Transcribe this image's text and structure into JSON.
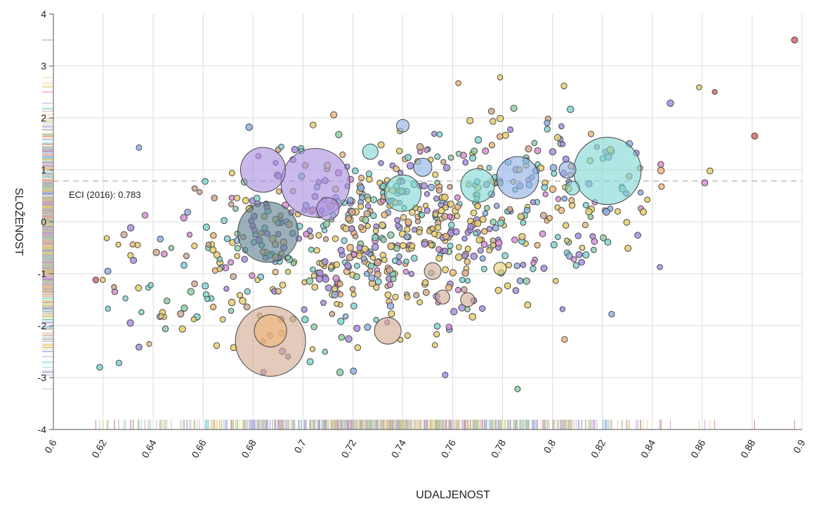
{
  "chart_data": {
    "type": "scatter",
    "title": "",
    "xlabel": "UDALJENOST",
    "ylabel": "SLOŽENOST",
    "xlim": [
      0.6,
      0.9
    ],
    "ylim": [
      -4,
      4
    ],
    "grid": true,
    "x_ticks": [
      "0.6",
      "0.62",
      "0.64",
      "0.66",
      "0.68",
      "0.7",
      "0.72",
      "0.74",
      "0.76",
      "0.78",
      "0.8",
      "0.82",
      "0.84",
      "0.86",
      "0.88",
      "0.9"
    ],
    "y_ticks": [
      "-4",
      "-3",
      "-2",
      "-1",
      "0",
      "1",
      "2",
      "3",
      "4"
    ],
    "reference_line": {
      "y": 0.783,
      "label": "ECI (2016): 0.783",
      "style": "dashed"
    },
    "rug_plots": {
      "x_axis": true,
      "y_axis": true
    },
    "colors": {
      "purple": "#a98fe0",
      "teal": "#7fd6d2",
      "blue": "#8fb2e6",
      "yellow": "#e9cf6f",
      "pink": "#d98fd6",
      "tan": "#d4a991",
      "orange": "#f0b879",
      "green": "#8fcfa6",
      "slate": "#5d7f8e",
      "red": "#d76a6a"
    },
    "large_bubbles": [
      {
        "x": 0.705,
        "y": 0.75,
        "r": 49,
        "color": "purple"
      },
      {
        "x": 0.822,
        "y": 0.98,
        "r": 48,
        "color": "teal"
      },
      {
        "x": 0.687,
        "y": -2.3,
        "r": 50,
        "color": "tan"
      },
      {
        "x": 0.686,
        "y": -0.2,
        "r": 43,
        "color": "slate"
      },
      {
        "x": 0.684,
        "y": 1.0,
        "r": 32,
        "color": "purple"
      },
      {
        "x": 0.786,
        "y": 0.85,
        "r": 30,
        "color": "blue"
      },
      {
        "x": 0.74,
        "y": 0.55,
        "r": 26,
        "color": "teal"
      },
      {
        "x": 0.77,
        "y": 0.7,
        "r": 24,
        "color": "teal"
      },
      {
        "x": 0.687,
        "y": -2.1,
        "r": 23,
        "color": "orange"
      },
      {
        "x": 0.734,
        "y": -2.1,
        "r": 19,
        "color": "tan"
      },
      {
        "x": 0.71,
        "y": 0.25,
        "r": 16,
        "color": "purple"
      },
      {
        "x": 0.748,
        "y": 1.05,
        "r": 13,
        "color": "blue"
      },
      {
        "x": 0.806,
        "y": 1.0,
        "r": 12,
        "color": "blue"
      },
      {
        "x": 0.727,
        "y": 1.35,
        "r": 11,
        "color": "teal"
      },
      {
        "x": 0.752,
        "y": -0.95,
        "r": 12,
        "color": "tan"
      },
      {
        "x": 0.756,
        "y": -1.45,
        "r": 10,
        "color": "tan"
      },
      {
        "x": 0.766,
        "y": -1.5,
        "r": 10,
        "color": "tan"
      },
      {
        "x": 0.74,
        "y": 1.85,
        "r": 9,
        "color": "blue"
      },
      {
        "x": 0.779,
        "y": -0.9,
        "r": 9,
        "color": "yellow"
      },
      {
        "x": 0.808,
        "y": 0.65,
        "r": 10,
        "color": "teal"
      }
    ],
    "small_points": {
      "count": 800,
      "approx_x_range": [
        0.618,
        0.9
      ],
      "approx_y_range": [
        -3.25,
        3.5
      ],
      "dense_region": "x 0.66–0.80, y -2 to 1.5"
    },
    "notable_points": [
      {
        "x": 0.897,
        "y": 3.5,
        "color": "red"
      },
      {
        "x": 0.881,
        "y": 1.65,
        "color": "red"
      },
      {
        "x": 0.617,
        "y": -1.12,
        "color": "red"
      },
      {
        "x": 0.865,
        "y": 2.5,
        "color": "red"
      },
      {
        "x": 0.786,
        "y": -3.22,
        "color": "green"
      },
      {
        "x": 0.757,
        "y": -2.95,
        "color": "purple"
      },
      {
        "x": 0.779,
        "y": 2.78,
        "color": "yellow"
      }
    ]
  }
}
